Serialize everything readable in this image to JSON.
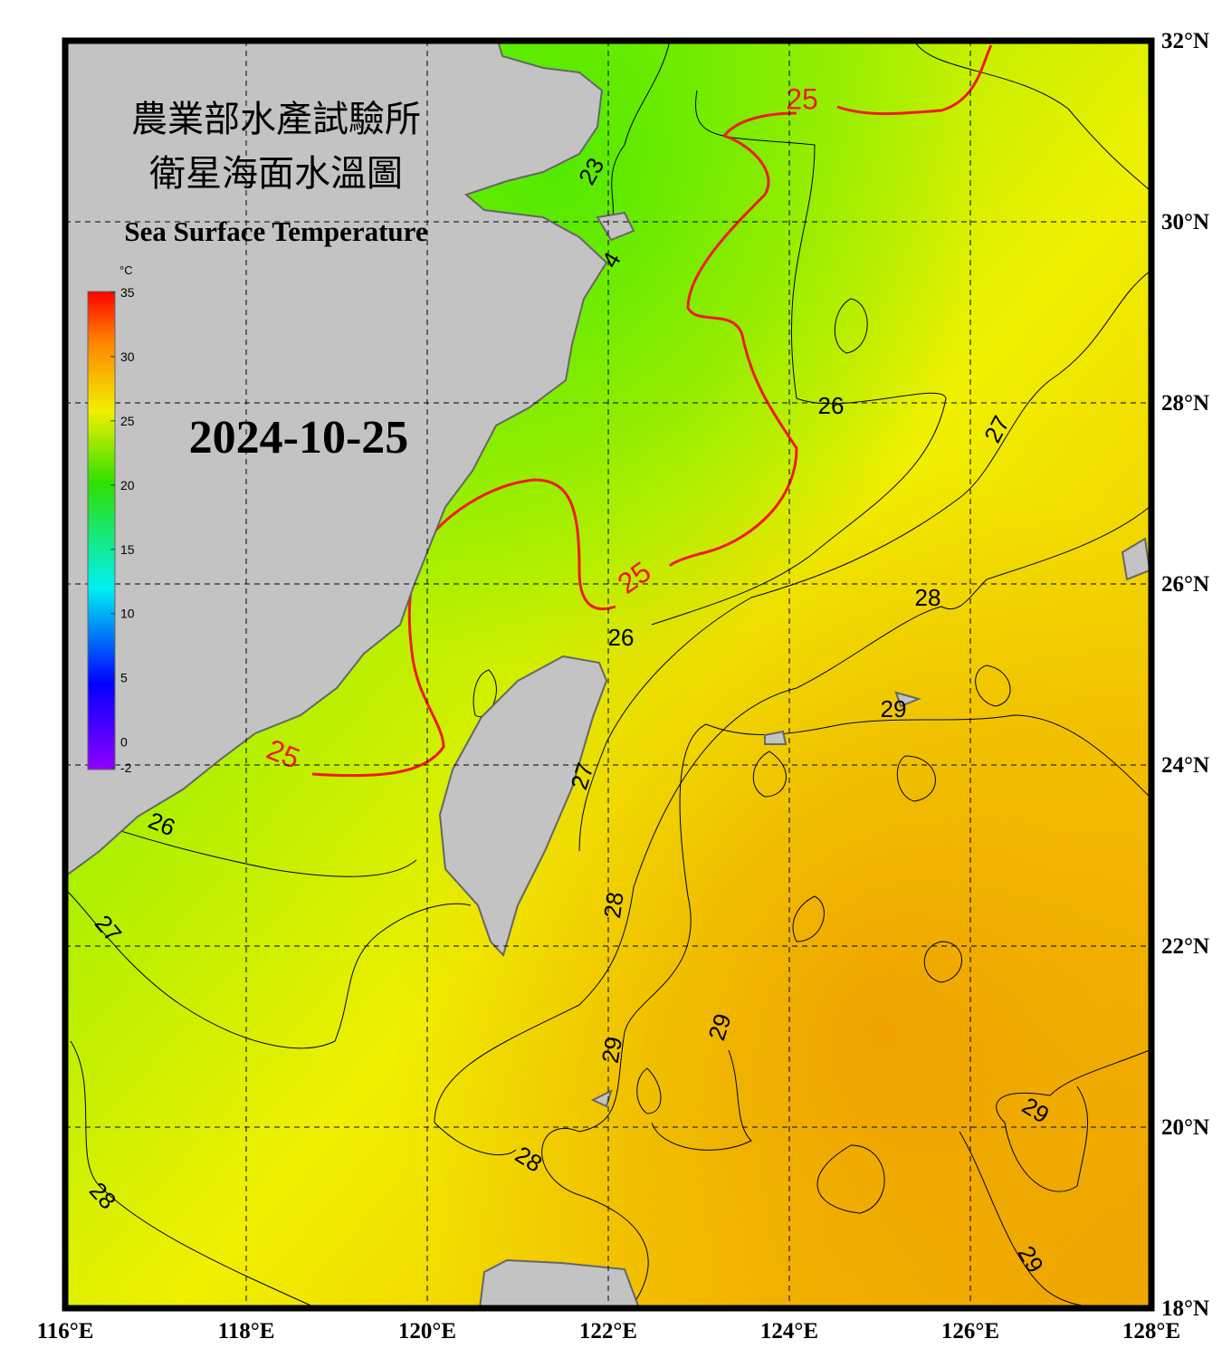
{
  "map": {
    "title_zh_1": "農業部水產試驗所",
    "title_zh_2": "衛星海面水溫圖",
    "title_en": "Sea Surface Temperature",
    "date": "2024-10-25",
    "xlim": [
      116,
      128
    ],
    "ylim": [
      18,
      32
    ],
    "xticks": [
      {
        "value": 116,
        "label": "116°E"
      },
      {
        "value": 118,
        "label": "118°E"
      },
      {
        "value": 120,
        "label": "120°E"
      },
      {
        "value": 122,
        "label": "122°E"
      },
      {
        "value": 124,
        "label": "124°E"
      },
      {
        "value": 126,
        "label": "126°E"
      },
      {
        "value": 128,
        "label": "128°E"
      }
    ],
    "yticks": [
      {
        "value": 18,
        "label": "18°N"
      },
      {
        "value": 20,
        "label": "20°N"
      },
      {
        "value": 22,
        "label": "22°N"
      },
      {
        "value": 24,
        "label": "24°N"
      },
      {
        "value": 26,
        "label": "26°N"
      },
      {
        "value": 28,
        "label": "28°N"
      },
      {
        "value": 30,
        "label": "30°N"
      },
      {
        "value": 32,
        "label": "32°N"
      }
    ],
    "grid": true,
    "colorbar": {
      "unit": "°C",
      "clim": [
        -2,
        35
      ],
      "ticks": [
        35,
        30,
        25,
        20,
        15,
        10,
        5,
        0,
        -2
      ]
    },
    "contour_labels": [
      "23",
      "4",
      "25",
      "25",
      "25",
      "26",
      "26",
      "26",
      "27",
      "27",
      "27",
      "28",
      "28",
      "28",
      "28",
      "29",
      "29",
      "29",
      "29",
      "29"
    ]
  }
}
